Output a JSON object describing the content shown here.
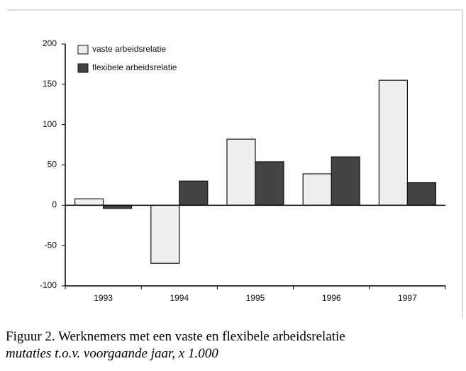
{
  "chart_data": {
    "type": "bar",
    "categories": [
      "1993",
      "1994",
      "1995",
      "1996",
      "1997"
    ],
    "series": [
      {
        "name": "vaste arbeidsrelatie",
        "color": "#eeeeee",
        "values": [
          8,
          -72,
          82,
          39,
          155
        ]
      },
      {
        "name": "flexibele arbeidsrelatie",
        "color": "#444444",
        "values": [
          -4,
          30,
          54,
          60,
          28
        ]
      }
    ],
    "ylim": [
      -100,
      200
    ],
    "yticks": [
      -100,
      -50,
      0,
      50,
      100,
      150,
      200
    ],
    "legend": "upper left",
    "caption": "Figuur 2. Werknemers met een vaste en flexibele arbeidsrelatie",
    "note": "mutaties t.o.v. voorgaande jaar, x 1.000"
  }
}
